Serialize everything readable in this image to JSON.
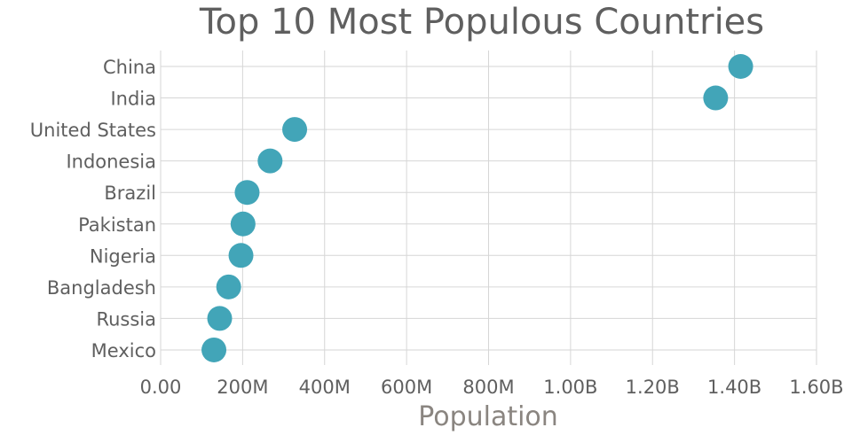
{
  "chart_data": {
    "type": "scatter",
    "title": "Top 10 Most Populous Countries",
    "xlabel": "Population",
    "ylabel": "",
    "xlim": [
      0,
      1600000000
    ],
    "x_ticks": [
      0,
      200000000,
      400000000,
      600000000,
      800000000,
      1000000000,
      1200000000,
      1400000000,
      1600000000
    ],
    "x_tick_labels": [
      "0.00",
      "200M",
      "400M",
      "600M",
      "800M",
      "1.00B",
      "1.20B",
      "1.40B",
      "1.60B"
    ],
    "categories": [
      "China",
      "India",
      "United States",
      "Indonesia",
      "Brazil",
      "Pakistan",
      "Nigeria",
      "Bangladesh",
      "Russia",
      "Mexico"
    ],
    "values": [
      1415000000,
      1354000000,
      327000000,
      267000000,
      211000000,
      201000000,
      196000000,
      166000000,
      144000000,
      130000000
    ],
    "marker_color": "#42a5b8",
    "grid": true
  }
}
